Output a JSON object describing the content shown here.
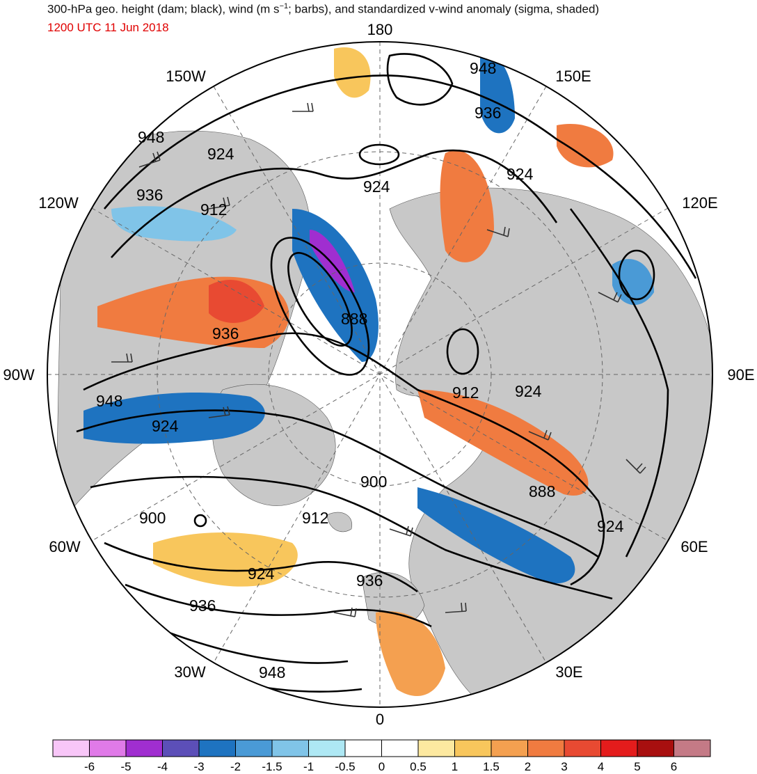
{
  "header": {
    "title": "300-hPa geo. height (dam; black), wind (m s^-1; barbs), and standardized v-wind anomaly (sigma, shaded)",
    "title_prefix": "300-hPa geo. height (dam; black), wind (m s",
    "title_exponent": "−1",
    "title_suffix": "; barbs), and standardized v-wind anomaly (sigma, shaded)",
    "valid_time": "1200 UTC 11 Jun 2018"
  },
  "map": {
    "projection": "north-polar-stereographic",
    "longitude_labels": [
      "180",
      "150E",
      "120E",
      "90E",
      "60E",
      "30E",
      "0",
      "30W",
      "60W",
      "90W",
      "120W",
      "150W"
    ],
    "contour_labels": [
      "948",
      "936",
      "924",
      "948",
      "924",
      "936",
      "912",
      "924",
      "888",
      "936",
      "912",
      "924",
      "948",
      "924",
      "900",
      "888",
      "900",
      "912",
      "924",
      "924",
      "936",
      "936",
      "948"
    ],
    "land_color": "#c8c8c8",
    "contour_color": "#000000"
  },
  "colorbar": {
    "colors": [
      "#f8c6f8",
      "#e07ae8",
      "#a02ed0",
      "#5c4fb8",
      "#1e73c0",
      "#4a9ad6",
      "#80c4e8",
      "#aee8f4",
      "#ffffff",
      "#ffffff",
      "#fde9a0",
      "#f8c65c",
      "#f4a050",
      "#f07b40",
      "#e84a32",
      "#e41c1c",
      "#a80f0f",
      "#c47a86"
    ],
    "ticks": [
      "-6",
      "-5",
      "-4",
      "-3",
      "-2",
      "-1.5",
      "-1",
      "-0.5",
      "0",
      "0.5",
      "1",
      "1.5",
      "2",
      "3",
      "4",
      "5",
      "6"
    ]
  }
}
